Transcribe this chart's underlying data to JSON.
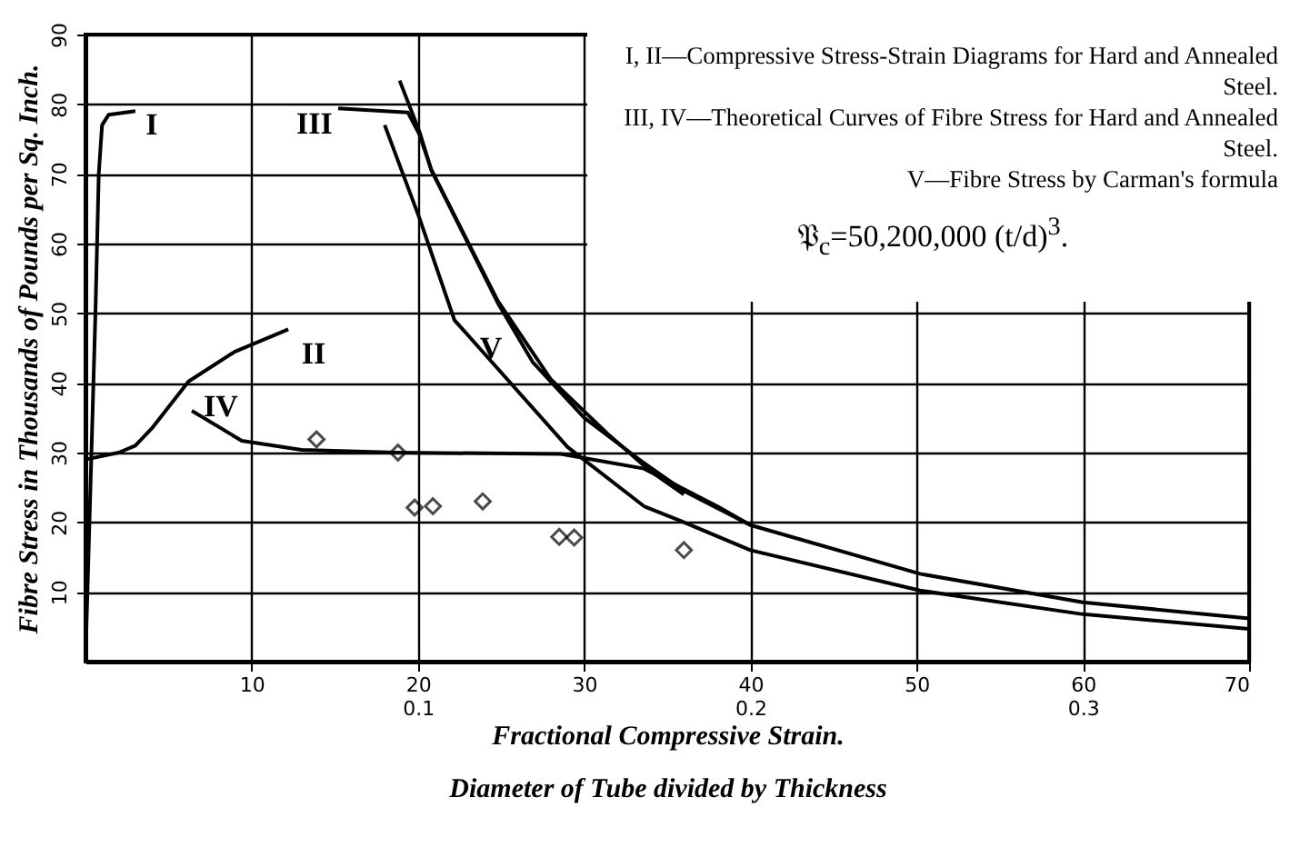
{
  "chart_data": {
    "type": "line",
    "xlabel": "Diameter of Tube divided by Thickness",
    "x2label": "Fractional Compressive Strain.",
    "ylabel": "Fibre Stress in Thousands of Pounds per Sq. Inch.",
    "xlim": [
      0,
      70
    ],
    "xticks": [
      10,
      20,
      30,
      40,
      50,
      60,
      70
    ],
    "x2lim": [
      0,
      0.35
    ],
    "x2ticks": [
      0.1,
      0.2,
      0.3
    ],
    "ylim": [
      0,
      90
    ],
    "yticks": [
      10,
      20,
      30,
      40,
      50,
      60,
      70,
      80,
      90
    ],
    "grid": true,
    "line_style": "solid",
    "series": [
      {
        "name": "I",
        "axis": "x2",
        "color": "#000000",
        "x": [
          0,
          0.003,
          0.004,
          0.005,
          0.007,
          0.015
        ],
        "values": [
          0,
          50,
          70,
          77,
          78.5,
          79
        ]
      },
      {
        "name": "II",
        "axis": "x2",
        "color": "#000000",
        "x": [
          0,
          0.01,
          0.015,
          0.02,
          0.031,
          0.045,
          0.061
        ],
        "values": [
          29,
          30,
          31,
          33.5,
          40.2,
          44.5,
          47.7
        ]
      },
      {
        "name": "III",
        "color": "#000000",
        "x": [
          15.2,
          19.4,
          20.1,
          20.8,
          24.8,
          26.9,
          30,
          33.6,
          36,
          40,
          50.2,
          60,
          70
        ],
        "values": [
          79.4,
          78.8,
          75.6,
          70.6,
          51.5,
          43,
          35,
          28.5,
          24.5,
          19.6,
          12.6,
          8.5,
          6.2
        ]
      },
      {
        "color": "#000000",
        "x": [
          18.9,
          20.1,
          20.8,
          24.8,
          28,
          31.5,
          34,
          36
        ],
        "values": [
          83.4,
          76,
          70.6,
          51.8,
          40.5,
          32.5,
          27.3,
          24
        ]
      },
      {
        "name": "IV",
        "color": "#000000",
        "x": [
          6.4,
          9.4,
          13,
          18.7,
          28.6,
          33.6,
          38,
          40
        ],
        "values": [
          36,
          31.7,
          30.4,
          30,
          29.8,
          27.7,
          22.3,
          19.6
        ]
      },
      {
        "name": "V",
        "color": "#000000",
        "x": [
          18,
          20.1,
          22.2,
          23.7,
          29,
          33.6,
          35.8,
          40,
          50.2,
          60,
          70
        ],
        "values": [
          77,
          63.6,
          49,
          45,
          30.8,
          22.3,
          20.2,
          16,
          10.2,
          6.8,
          4.7
        ]
      },
      {
        "type": "scatter",
        "marker": "diamond",
        "color": "#000000",
        "x": [
          13.9,
          18.8,
          19.8,
          20.9,
          23.9,
          28.5,
          29.4,
          36
        ],
        "values": [
          31.9,
          30,
          22.1,
          22.3,
          23,
          17.9,
          17.8,
          16
        ]
      }
    ],
    "annotations": [
      "I, II—Compressive Stress-Strain Diagrams for Hard and Annealed Steel.",
      "III, IV—Theoretical Curves of Fibre Stress for Hard and Annealed Steel.",
      "V—Fibre Stress by Carman's formula",
      "𝔓$_{c}$=50,200,000 (t/d)$^{3}$."
    ]
  }
}
